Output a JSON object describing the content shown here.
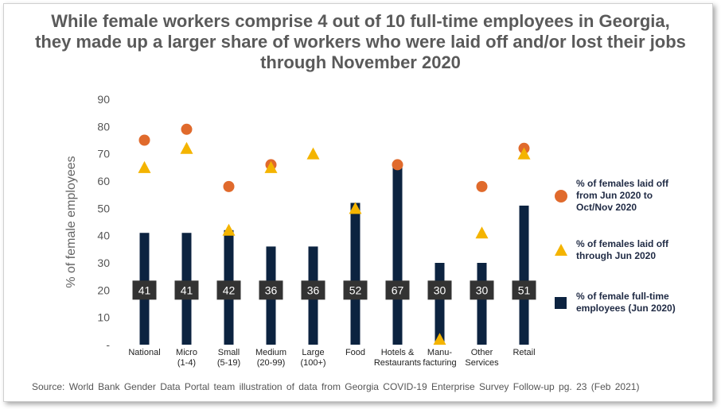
{
  "title": "While female workers comprise 4 out of 10 full-time employees in Georgia, they made up a larger share of workers who were laid off and/or lost their jobs through November 2020",
  "source": "Source:  World Bank Gender  Data Portal team illustration  of data from Georgia  COVID-19  Enterprise  Survey Follow-up  pg. 23 (Feb 2021)",
  "chart_data": {
    "type": "bar",
    "ylabel": "% of female employees",
    "ylim": [
      0,
      90
    ],
    "yticks": [
      "-",
      "10",
      "20",
      "30",
      "40",
      "50",
      "60",
      "70",
      "80",
      "90"
    ],
    "categories": [
      [
        "National"
      ],
      [
        "Micro",
        "(1-4)"
      ],
      [
        "Small",
        "(5-19)"
      ],
      [
        "Medium",
        "(20-99)"
      ],
      [
        "Large",
        "(100+)"
      ],
      [
        "Food"
      ],
      [
        "Hotels &",
        "Restaurants"
      ],
      [
        "Manu-",
        "facturing"
      ],
      [
        "Other",
        "Services"
      ],
      [
        "Retail"
      ]
    ],
    "series": [
      {
        "name": "% of female full-time employees  (Jun 2020)",
        "kind": "bar",
        "color": "#0c2340",
        "values": [
          41,
          41,
          42,
          36,
          36,
          52,
          67,
          30,
          30,
          51
        ],
        "labels": [
          "41",
          "41",
          "42",
          "36",
          "36",
          "52",
          "67",
          "30",
          "30",
          "51"
        ]
      },
      {
        "name": "% of females laid off through Jun 2020",
        "kind": "triangle",
        "color": "#f4b400",
        "values": [
          65,
          72,
          42,
          65,
          70,
          50,
          null,
          2,
          41,
          70
        ]
      },
      {
        "name": "% of females laid off from Jun 2020 to Oct/Nov 2020",
        "kind": "circle",
        "color": "#e06a2c",
        "values": [
          75,
          79,
          58,
          66,
          null,
          null,
          66,
          null,
          58,
          72
        ]
      }
    ],
    "legend": [
      {
        "kind": "circle",
        "color": "#e06a2c",
        "lines": [
          "% of females laid off",
          "from Jun 2020 to",
          "Oct/Nov 2020"
        ]
      },
      {
        "kind": "triangle",
        "color": "#f4b400",
        "lines": [
          "% of females laid off",
          "through Jun 2020"
        ]
      },
      {
        "kind": "square",
        "color": "#0c2340",
        "lines": [
          "% of female full-time",
          "employees  (Jun 2020)"
        ]
      }
    ],
    "legend_position": "right",
    "grid": false
  }
}
